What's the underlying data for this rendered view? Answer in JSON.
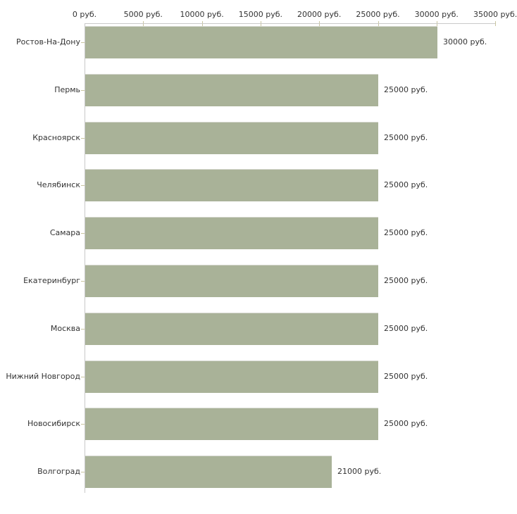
{
  "chart_data": {
    "type": "bar",
    "orientation": "horizontal",
    "title": "",
    "categories": [
      "Ростов-На-Дону",
      "Пермь",
      "Красноярск",
      "Челябинск",
      "Самара",
      "Екатеринбург",
      "Москва",
      "Нижний Новгород",
      "Новосибирск",
      "Волгоград"
    ],
    "values": [
      30000,
      25000,
      25000,
      25000,
      25000,
      25000,
      25000,
      25000,
      25000,
      21000
    ],
    "value_labels": [
      "30000 руб.",
      "25000 руб.",
      "25000 руб.",
      "25000 руб.",
      "25000 руб.",
      "25000 руб.",
      "25000 руб.",
      "25000 руб.",
      "25000 руб.",
      "21000 руб."
    ],
    "unit": "руб.",
    "x_ticks": [
      0,
      5000,
      10000,
      15000,
      20000,
      25000,
      30000,
      35000
    ],
    "x_tick_labels": [
      "0 руб.",
      "5000 руб.",
      "10000 руб.",
      "15000 руб.",
      "20000 руб.",
      "25000 руб.",
      "30000 руб.",
      "35000 руб."
    ],
    "xlim": [
      0,
      35000
    ],
    "grid": false,
    "legend": false,
    "axis_position": "top",
    "colors": {
      "bar": "#a9b298",
      "bar_edge": "#d6d8d0",
      "axis_line": "#c9c9c9",
      "tick": "#c9c5a0",
      "text": "#333333",
      "background": "#ffffff"
    }
  }
}
